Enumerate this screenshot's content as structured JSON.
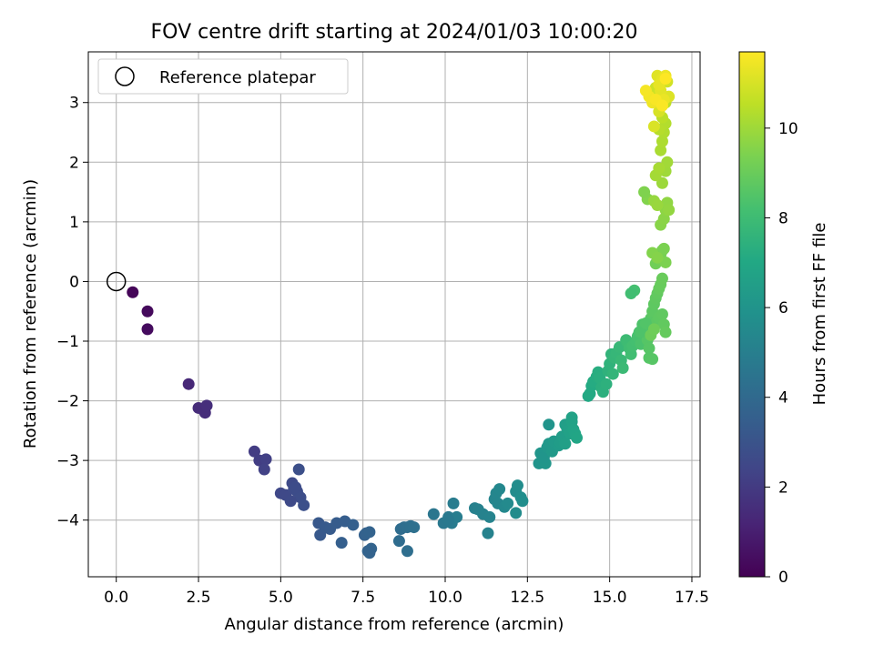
{
  "chart_data": {
    "type": "scatter",
    "title": "FOV centre drift starting at 2024/01/03 10:00:20",
    "xlabel": "Angular distance from reference (arcmin)",
    "ylabel": "Rotation from reference (arcmin)",
    "xlim": [
      -0.85,
      17.75
    ],
    "ylim": [
      -4.95,
      3.85
    ],
    "x_ticks": [
      "0.0",
      "2.5",
      "5.0",
      "7.5",
      "10.0",
      "12.5",
      "15.0",
      "17.5"
    ],
    "y_ticks": [
      "−4",
      "−3",
      "−2",
      "−1",
      "0",
      "1",
      "2",
      "3"
    ],
    "grid": true,
    "legend": {
      "placement": "top-left",
      "entries": [
        "Reference platepar"
      ]
    },
    "reference_point": {
      "x": 0.0,
      "y": 0.0
    },
    "colorbar": {
      "label": "Hours from first FF file",
      "ticks": [
        "0",
        "2",
        "4",
        "6",
        "8",
        "10"
      ],
      "range": [
        0,
        11.7
      ],
      "colormap": "viridis"
    },
    "points_x": [
      0.5,
      0.95,
      0.95,
      2.2,
      2.5,
      2.7,
      2.75,
      4.2,
      4.35,
      4.55,
      4.5,
      5.0,
      5.15,
      5.35,
      5.4,
      5.5,
      5.6,
      5.55,
      5.7,
      5.3,
      5.45,
      6.15,
      6.2,
      6.35,
      6.5,
      6.7,
      6.95,
      6.85,
      7.2,
      7.55,
      7.6,
      7.7,
      7.75,
      7.65,
      7.7,
      8.65,
      8.75,
      8.85,
      8.95,
      9.05,
      8.6,
      8.85,
      9.65,
      9.95,
      10.1,
      10.2,
      10.25,
      10.35,
      10.1,
      10.9,
      11.0,
      11.15,
      11.35,
      11.3,
      11.5,
      11.55,
      11.65,
      11.6,
      11.8,
      11.9,
      12.15,
      12.2,
      12.3,
      12.35,
      12.15,
      12.85,
      12.9,
      13.05,
      13.0,
      13.1,
      13.15,
      13.25,
      13.3,
      13.45,
      13.5,
      13.55,
      13.6,
      13.65,
      13.7,
      13.75,
      13.8,
      13.85,
      13.9,
      13.95,
      14.0,
      13.65,
      13.85,
      13.15,
      14.35,
      14.4,
      14.45,
      14.5,
      14.6,
      14.65,
      14.7,
      14.75,
      14.8,
      14.9,
      14.95,
      15.0,
      15.05,
      15.1,
      15.15,
      15.2,
      15.3,
      15.35,
      15.4,
      15.5,
      15.55,
      15.6,
      15.65,
      15.7,
      15.8,
      15.85,
      15.9,
      15.95,
      16.0,
      16.05,
      16.1,
      16.15,
      16.2,
      16.25,
      16.3,
      16.35,
      16.4,
      16.45,
      16.5,
      16.55,
      16.6,
      15.75,
      15.65,
      15.95,
      16.1,
      16.2,
      16.3,
      16.45,
      16.5,
      16.6,
      16.65,
      16.7,
      16.25,
      16.35,
      16.4,
      16.5,
      16.55,
      16.6,
      16.65,
      16.7,
      16.3,
      16.45,
      16.55,
      16.65,
      16.7,
      16.75,
      16.8,
      16.15,
      16.05,
      16.35,
      16.45,
      16.6,
      16.7,
      16.75,
      16.4,
      16.5,
      16.55,
      16.6,
      16.65,
      16.7,
      16.5,
      16.6,
      16.7,
      16.45,
      16.55,
      16.4,
      16.6,
      16.75,
      16.5,
      16.35,
      16.8,
      16.45,
      16.55,
      16.6,
      16.5,
      16.65,
      16.7,
      16.3,
      16.2,
      16.1,
      16.4,
      16.6,
      16.7
    ],
    "points_y": [
      -0.18,
      -0.5,
      -0.8,
      -1.72,
      -2.12,
      -2.2,
      -2.08,
      -2.85,
      -3.0,
      -2.98,
      -3.15,
      -3.55,
      -3.58,
      -3.38,
      -3.48,
      -3.52,
      -3.62,
      -3.15,
      -3.75,
      -3.68,
      -3.45,
      -4.05,
      -4.25,
      -4.12,
      -4.15,
      -4.05,
      -4.02,
      -4.38,
      -4.08,
      -4.25,
      -4.22,
      -4.2,
      -4.48,
      -4.52,
      -4.55,
      -4.15,
      -4.12,
      -4.12,
      -4.1,
      -4.12,
      -4.35,
      -4.52,
      -3.9,
      -4.05,
      -3.95,
      -4.05,
      -3.72,
      -3.95,
      -4.0,
      -3.8,
      -3.82,
      -3.9,
      -3.95,
      -4.22,
      -3.65,
      -3.55,
      -3.48,
      -3.72,
      -3.78,
      -3.72,
      -3.52,
      -3.42,
      -3.62,
      -3.68,
      -3.88,
      -3.05,
      -2.88,
      -3.05,
      -2.95,
      -2.78,
      -2.72,
      -2.85,
      -2.68,
      -2.75,
      -2.7,
      -2.6,
      -2.62,
      -2.4,
      -2.45,
      -2.5,
      -2.55,
      -2.35,
      -2.48,
      -2.55,
      -2.62,
      -2.72,
      -2.28,
      -2.4,
      -1.92,
      -1.88,
      -1.75,
      -1.68,
      -1.6,
      -1.52,
      -1.62,
      -1.78,
      -1.85,
      -1.72,
      -1.5,
      -1.38,
      -1.22,
      -1.55,
      -1.28,
      -1.2,
      -1.1,
      -1.32,
      -1.45,
      -0.98,
      -1.02,
      -1.12,
      -1.22,
      -1.08,
      -1.0,
      -0.92,
      -0.85,
      -1.05,
      -0.72,
      -0.8,
      -0.85,
      -0.98,
      -1.12,
      -0.62,
      -0.5,
      -0.38,
      -0.28,
      -0.2,
      -0.12,
      -0.05,
      0.05,
      -0.15,
      -0.2,
      -0.85,
      -0.7,
      -1.28,
      -1.3,
      -0.65,
      -0.6,
      -0.55,
      -0.72,
      -0.85,
      -0.9,
      -0.8,
      0.3,
      0.38,
      0.45,
      0.52,
      0.55,
      0.32,
      0.48,
      0.4,
      0.95,
      1.05,
      1.2,
      1.32,
      1.2,
      1.38,
      1.5,
      1.35,
      1.28,
      1.65,
      1.85,
      2.0,
      1.78,
      1.9,
      2.2,
      2.35,
      2.5,
      2.65,
      2.55,
      2.75,
      3.0,
      3.1,
      3.15,
      3.25,
      2.95,
      3.35,
      2.85,
      2.6,
      3.1,
      3.45,
      3.2,
      3.4,
      3.3,
      3.05,
      3.45,
      3.0,
      3.1,
      3.2,
      3.05,
      2.95,
      3.4,
      3.42
    ],
    "points_t": [
      0.15,
      0.3,
      0.35,
      1.3,
      1.45,
      1.5,
      1.55,
      2.05,
      2.1,
      2.2,
      2.25,
      2.5,
      2.55,
      2.6,
      2.65,
      2.7,
      2.75,
      2.8,
      2.85,
      2.6,
      2.7,
      3.2,
      3.25,
      3.3,
      3.35,
      3.4,
      3.45,
      3.5,
      3.55,
      3.6,
      3.65,
      3.7,
      3.75,
      3.7,
      3.72,
      4.1,
      4.15,
      4.2,
      4.25,
      4.3,
      4.1,
      4.2,
      4.6,
      4.7,
      4.75,
      4.8,
      4.85,
      4.9,
      4.75,
      5.05,
      5.1,
      5.15,
      5.2,
      5.15,
      5.3,
      5.35,
      5.4,
      5.35,
      5.45,
      5.5,
      5.6,
      5.65,
      5.7,
      5.7,
      5.6,
      6.0,
      6.05,
      6.1,
      6.05,
      6.15,
      6.2,
      6.25,
      6.3,
      6.35,
      6.4,
      6.45,
      6.5,
      6.5,
      6.55,
      6.6,
      6.65,
      6.7,
      6.75,
      6.8,
      6.85,
      6.55,
      6.7,
      6.0,
      7.0,
      7.05,
      7.1,
      7.15,
      7.2,
      7.25,
      7.3,
      7.35,
      7.4,
      7.45,
      7.5,
      7.55,
      7.6,
      7.65,
      7.7,
      7.75,
      7.8,
      7.85,
      7.9,
      7.95,
      8.0,
      8.05,
      8.1,
      8.15,
      8.2,
      8.25,
      8.3,
      8.35,
      8.4,
      8.45,
      8.5,
      8.55,
      8.6,
      8.65,
      8.7,
      8.75,
      8.8,
      8.85,
      8.9,
      8.95,
      9.0,
      8.2,
      8.1,
      8.4,
      8.5,
      8.55,
      8.6,
      8.7,
      8.75,
      8.8,
      8.85,
      8.9,
      9.05,
      9.1,
      9.15,
      9.2,
      9.25,
      9.3,
      9.35,
      9.4,
      9.5,
      9.55,
      9.6,
      9.65,
      9.7,
      9.75,
      9.8,
      9.5,
      9.45,
      9.85,
      9.9,
      9.95,
      10.0,
      10.05,
      10.1,
      10.15,
      10.2,
      10.25,
      10.3,
      10.35,
      10.4,
      10.5,
      10.55,
      10.6,
      10.7,
      10.8,
      10.85,
      10.9,
      11.0,
      11.05,
      11.1,
      11.15,
      11.2,
      11.25,
      11.3,
      11.35,
      11.4,
      11.45,
      11.5,
      11.55,
      11.6,
      11.65,
      11.7
    ]
  }
}
